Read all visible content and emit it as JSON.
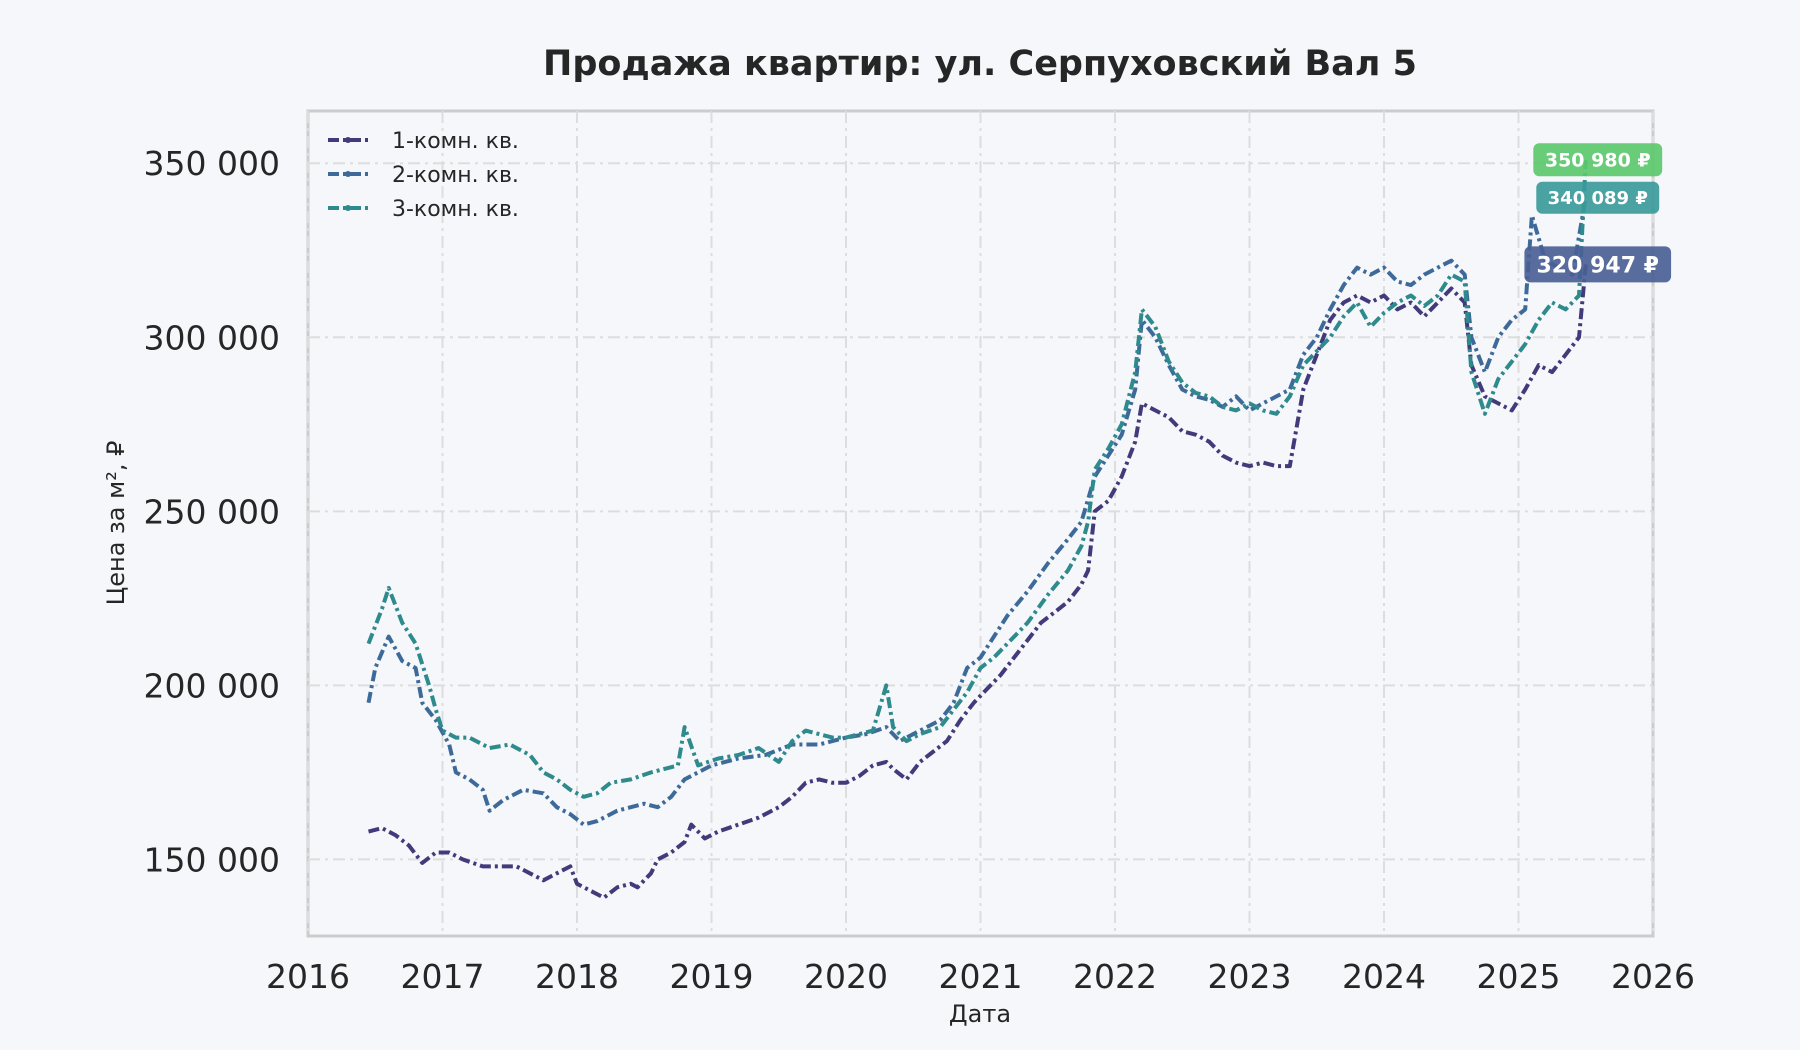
{
  "chart_data": {
    "type": "line",
    "title": "Продажа квартир: ул. Серпуховский Вал 5",
    "xlabel": "Дата",
    "ylabel": "Цена за м², ₽",
    "xlim": [
      2016,
      2026
    ],
    "ylim": [
      128000,
      365000
    ],
    "x_ticks": [
      "2016",
      "2017",
      "2018",
      "2019",
      "2020",
      "2021",
      "2022",
      "2023",
      "2024",
      "2025",
      "2026"
    ],
    "y_ticks": [
      150000,
      200000,
      250000,
      300000,
      350000
    ],
    "y_tick_labels": [
      "150 000",
      "200 000",
      "250 000",
      "300 000",
      "350 000"
    ],
    "grid": true,
    "legend_position": "top-left",
    "series": [
      {
        "name": "1-комн. кв.",
        "color": "#433a7c",
        "last_label": "320 947 ₽",
        "points": [
          [
            2016.45,
            158000
          ],
          [
            2016.55,
            159000
          ],
          [
            2016.65,
            157000
          ],
          [
            2016.75,
            154000
          ],
          [
            2016.85,
            149000
          ],
          [
            2016.95,
            152000
          ],
          [
            2017.05,
            152000
          ],
          [
            2017.15,
            150000
          ],
          [
            2017.3,
            148000
          ],
          [
            2017.45,
            148000
          ],
          [
            2017.55,
            148000
          ],
          [
            2017.65,
            146000
          ],
          [
            2017.75,
            144000
          ],
          [
            2017.85,
            146000
          ],
          [
            2017.95,
            148000
          ],
          [
            2018.0,
            143000
          ],
          [
            2018.1,
            141000
          ],
          [
            2018.2,
            139000
          ],
          [
            2018.3,
            142000
          ],
          [
            2018.4,
            143000
          ],
          [
            2018.45,
            142000
          ],
          [
            2018.55,
            146000
          ],
          [
            2018.6,
            150000
          ],
          [
            2018.7,
            152000
          ],
          [
            2018.8,
            155000
          ],
          [
            2018.85,
            160000
          ],
          [
            2018.95,
            156000
          ],
          [
            2019.05,
            158000
          ],
          [
            2019.2,
            160000
          ],
          [
            2019.35,
            162000
          ],
          [
            2019.5,
            165000
          ],
          [
            2019.6,
            168000
          ],
          [
            2019.7,
            172000
          ],
          [
            2019.8,
            173000
          ],
          [
            2019.9,
            172000
          ],
          [
            2020.0,
            172000
          ],
          [
            2020.1,
            174000
          ],
          [
            2020.2,
            177000
          ],
          [
            2020.3,
            178000
          ],
          [
            2020.35,
            176000
          ],
          [
            2020.45,
            173000
          ],
          [
            2020.55,
            178000
          ],
          [
            2020.65,
            181000
          ],
          [
            2020.75,
            184000
          ],
          [
            2020.85,
            190000
          ],
          [
            2020.95,
            195000
          ],
          [
            2021.05,
            199000
          ],
          [
            2021.15,
            203000
          ],
          [
            2021.25,
            208000
          ],
          [
            2021.35,
            213000
          ],
          [
            2021.45,
            218000
          ],
          [
            2021.55,
            221000
          ],
          [
            2021.65,
            224000
          ],
          [
            2021.75,
            229000
          ],
          [
            2021.8,
            233000
          ],
          [
            2021.85,
            250000
          ],
          [
            2021.95,
            253000
          ],
          [
            2022.05,
            260000
          ],
          [
            2022.15,
            270000
          ],
          [
            2022.2,
            281000
          ],
          [
            2022.3,
            279000
          ],
          [
            2022.4,
            277000
          ],
          [
            2022.5,
            273000
          ],
          [
            2022.6,
            272000
          ],
          [
            2022.7,
            270000
          ],
          [
            2022.8,
            266000
          ],
          [
            2022.9,
            264000
          ],
          [
            2023.0,
            263000
          ],
          [
            2023.1,
            264000
          ],
          [
            2023.2,
            263000
          ],
          [
            2023.3,
            263000
          ],
          [
            2023.4,
            285000
          ],
          [
            2023.5,
            295000
          ],
          [
            2023.6,
            305000
          ],
          [
            2023.7,
            310000
          ],
          [
            2023.8,
            312000
          ],
          [
            2023.9,
            310000
          ],
          [
            2024.0,
            312000
          ],
          [
            2024.1,
            308000
          ],
          [
            2024.2,
            310000
          ],
          [
            2024.3,
            306000
          ],
          [
            2024.4,
            310000
          ],
          [
            2024.5,
            314000
          ],
          [
            2024.6,
            310000
          ],
          [
            2024.65,
            292000
          ],
          [
            2024.75,
            283000
          ],
          [
            2024.85,
            281000
          ],
          [
            2024.95,
            279000
          ],
          [
            2025.05,
            285000
          ],
          [
            2025.15,
            292000
          ],
          [
            2025.25,
            290000
          ],
          [
            2025.35,
            295000
          ],
          [
            2025.45,
            300000
          ],
          [
            2025.5,
            320947
          ]
        ]
      },
      {
        "name": "2-комн. кв.",
        "color": "#3e6a9a",
        "last_label": "340 089 ₽",
        "points": [
          [
            2016.45,
            195000
          ],
          [
            2016.5,
            205000
          ],
          [
            2016.6,
            214000
          ],
          [
            2016.7,
            207000
          ],
          [
            2016.8,
            205000
          ],
          [
            2016.85,
            195000
          ],
          [
            2016.95,
            190000
          ],
          [
            2017.05,
            183000
          ],
          [
            2017.1,
            175000
          ],
          [
            2017.2,
            173000
          ],
          [
            2017.3,
            170000
          ],
          [
            2017.35,
            164000
          ],
          [
            2017.45,
            167000
          ],
          [
            2017.6,
            170000
          ],
          [
            2017.75,
            169000
          ],
          [
            2017.85,
            165000
          ],
          [
            2017.95,
            163000
          ],
          [
            2018.05,
            160000
          ],
          [
            2018.15,
            161000
          ],
          [
            2018.3,
            164000
          ],
          [
            2018.5,
            166000
          ],
          [
            2018.6,
            165000
          ],
          [
            2018.7,
            168000
          ],
          [
            2018.8,
            173000
          ],
          [
            2018.9,
            175000
          ],
          [
            2019.0,
            177000
          ],
          [
            2019.2,
            179000
          ],
          [
            2019.4,
            180000
          ],
          [
            2019.6,
            183000
          ],
          [
            2019.8,
            183000
          ],
          [
            2020.0,
            185000
          ],
          [
            2020.15,
            186000
          ],
          [
            2020.3,
            188000
          ],
          [
            2020.4,
            184000
          ],
          [
            2020.55,
            187000
          ],
          [
            2020.7,
            190000
          ],
          [
            2020.8,
            195000
          ],
          [
            2020.9,
            205000
          ],
          [
            2021.0,
            208000
          ],
          [
            2021.1,
            214000
          ],
          [
            2021.2,
            220000
          ],
          [
            2021.35,
            227000
          ],
          [
            2021.5,
            235000
          ],
          [
            2021.65,
            242000
          ],
          [
            2021.75,
            247000
          ],
          [
            2021.85,
            260000
          ],
          [
            2021.95,
            266000
          ],
          [
            2022.05,
            272000
          ],
          [
            2022.15,
            285000
          ],
          [
            2022.2,
            305000
          ],
          [
            2022.3,
            300000
          ],
          [
            2022.4,
            292000
          ],
          [
            2022.5,
            285000
          ],
          [
            2022.6,
            283000
          ],
          [
            2022.7,
            282000
          ],
          [
            2022.8,
            280000
          ],
          [
            2022.9,
            283000
          ],
          [
            2023.0,
            279000
          ],
          [
            2023.1,
            281000
          ],
          [
            2023.2,
            283000
          ],
          [
            2023.3,
            285000
          ],
          [
            2023.4,
            295000
          ],
          [
            2023.5,
            300000
          ],
          [
            2023.6,
            308000
          ],
          [
            2023.7,
            315000
          ],
          [
            2023.8,
            320000
          ],
          [
            2023.9,
            318000
          ],
          [
            2024.0,
            320000
          ],
          [
            2024.1,
            316000
          ],
          [
            2024.2,
            315000
          ],
          [
            2024.3,
            318000
          ],
          [
            2024.4,
            320000
          ],
          [
            2024.5,
            322000
          ],
          [
            2024.6,
            318000
          ],
          [
            2024.65,
            300000
          ],
          [
            2024.75,
            290000
          ],
          [
            2024.85,
            300000
          ],
          [
            2024.95,
            305000
          ],
          [
            2025.05,
            308000
          ],
          [
            2025.1,
            335000
          ],
          [
            2025.2,
            322000
          ],
          [
            2025.3,
            320000
          ],
          [
            2025.4,
            318000
          ],
          [
            2025.5,
            340089
          ]
        ]
      },
      {
        "name": "3-комн. кв.",
        "color": "#2e8a8c",
        "last_label": "350 980 ₽",
        "points": [
          [
            2016.45,
            212000
          ],
          [
            2016.55,
            222000
          ],
          [
            2016.6,
            228000
          ],
          [
            2016.7,
            218000
          ],
          [
            2016.8,
            212000
          ],
          [
            2016.9,
            200000
          ],
          [
            2016.95,
            193000
          ],
          [
            2017.0,
            187000
          ],
          [
            2017.1,
            185000
          ],
          [
            2017.2,
            185000
          ],
          [
            2017.35,
            182000
          ],
          [
            2017.5,
            183000
          ],
          [
            2017.65,
            180000
          ],
          [
            2017.75,
            175000
          ],
          [
            2017.85,
            173000
          ],
          [
            2017.95,
            170000
          ],
          [
            2018.05,
            168000
          ],
          [
            2018.15,
            169000
          ],
          [
            2018.25,
            172000
          ],
          [
            2018.4,
            173000
          ],
          [
            2018.55,
            175000
          ],
          [
            2018.65,
            176000
          ],
          [
            2018.75,
            177000
          ],
          [
            2018.8,
            188000
          ],
          [
            2018.9,
            177000
          ],
          [
            2019.05,
            179000
          ],
          [
            2019.2,
            180000
          ],
          [
            2019.35,
            182000
          ],
          [
            2019.5,
            178000
          ],
          [
            2019.6,
            184000
          ],
          [
            2019.7,
            187000
          ],
          [
            2019.8,
            186000
          ],
          [
            2019.9,
            185000
          ],
          [
            2020.0,
            185000
          ],
          [
            2020.1,
            186000
          ],
          [
            2020.2,
            187000
          ],
          [
            2020.3,
            200000
          ],
          [
            2020.35,
            188000
          ],
          [
            2020.45,
            184000
          ],
          [
            2020.55,
            186000
          ],
          [
            2020.7,
            188000
          ],
          [
            2020.8,
            193000
          ],
          [
            2020.9,
            198000
          ],
          [
            2021.0,
            205000
          ],
          [
            2021.1,
            208000
          ],
          [
            2021.2,
            212000
          ],
          [
            2021.35,
            218000
          ],
          [
            2021.5,
            226000
          ],
          [
            2021.65,
            233000
          ],
          [
            2021.75,
            240000
          ],
          [
            2021.8,
            247000
          ],
          [
            2021.85,
            262000
          ],
          [
            2021.95,
            268000
          ],
          [
            2022.05,
            275000
          ],
          [
            2022.15,
            290000
          ],
          [
            2022.2,
            308000
          ],
          [
            2022.3,
            303000
          ],
          [
            2022.4,
            293000
          ],
          [
            2022.5,
            287000
          ],
          [
            2022.6,
            284000
          ],
          [
            2022.7,
            283000
          ],
          [
            2022.8,
            280000
          ],
          [
            2022.9,
            279000
          ],
          [
            2023.0,
            281000
          ],
          [
            2023.1,
            279000
          ],
          [
            2023.2,
            278000
          ],
          [
            2023.3,
            283000
          ],
          [
            2023.4,
            292000
          ],
          [
            2023.5,
            296000
          ],
          [
            2023.6,
            300000
          ],
          [
            2023.7,
            306000
          ],
          [
            2023.8,
            310000
          ],
          [
            2023.9,
            303000
          ],
          [
            2024.0,
            307000
          ],
          [
            2024.1,
            310000
          ],
          [
            2024.2,
            312000
          ],
          [
            2024.3,
            309000
          ],
          [
            2024.4,
            312000
          ],
          [
            2024.5,
            318000
          ],
          [
            2024.6,
            316000
          ],
          [
            2024.65,
            290000
          ],
          [
            2024.75,
            278000
          ],
          [
            2024.85,
            288000
          ],
          [
            2024.95,
            293000
          ],
          [
            2025.05,
            298000
          ],
          [
            2025.15,
            305000
          ],
          [
            2025.25,
            310000
          ],
          [
            2025.35,
            308000
          ],
          [
            2025.45,
            312000
          ],
          [
            2025.5,
            350980
          ]
        ]
      }
    ]
  }
}
